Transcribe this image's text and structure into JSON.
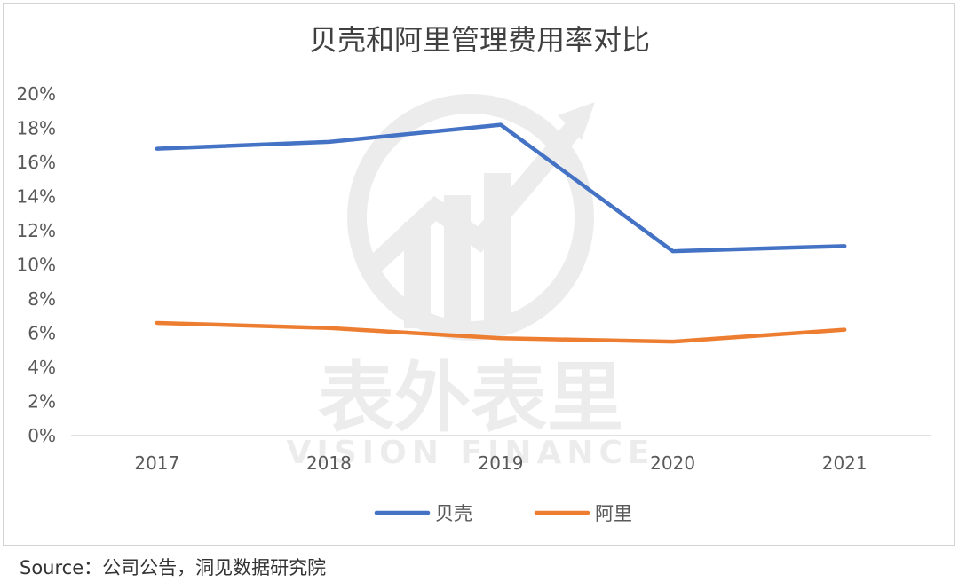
{
  "chart_data": {
    "type": "line",
    "title": "贝壳和阿里管理费用率对比",
    "categories": [
      "2017",
      "2018",
      "2019",
      "2020",
      "2021"
    ],
    "series": [
      {
        "name": "贝壳",
        "color": "#4472c4",
        "values": [
          16.8,
          17.2,
          18.2,
          10.8,
          11.1
        ]
      },
      {
        "name": "阿里",
        "color": "#ed7d31",
        "values": [
          6.6,
          6.3,
          5.7,
          5.5,
          6.2
        ]
      }
    ],
    "y_ticks": [
      "0%",
      "2%",
      "4%",
      "6%",
      "8%",
      "10%",
      "12%",
      "14%",
      "16%",
      "18%",
      "20%"
    ],
    "ylim": [
      0,
      20
    ],
    "y_unit": "%",
    "grid": false,
    "legend_position": "bottom"
  },
  "watermark": {
    "text": "表外表里",
    "subtext": "VISION FINANCE"
  },
  "source": "Source：公司公告，洞见数据研究院"
}
